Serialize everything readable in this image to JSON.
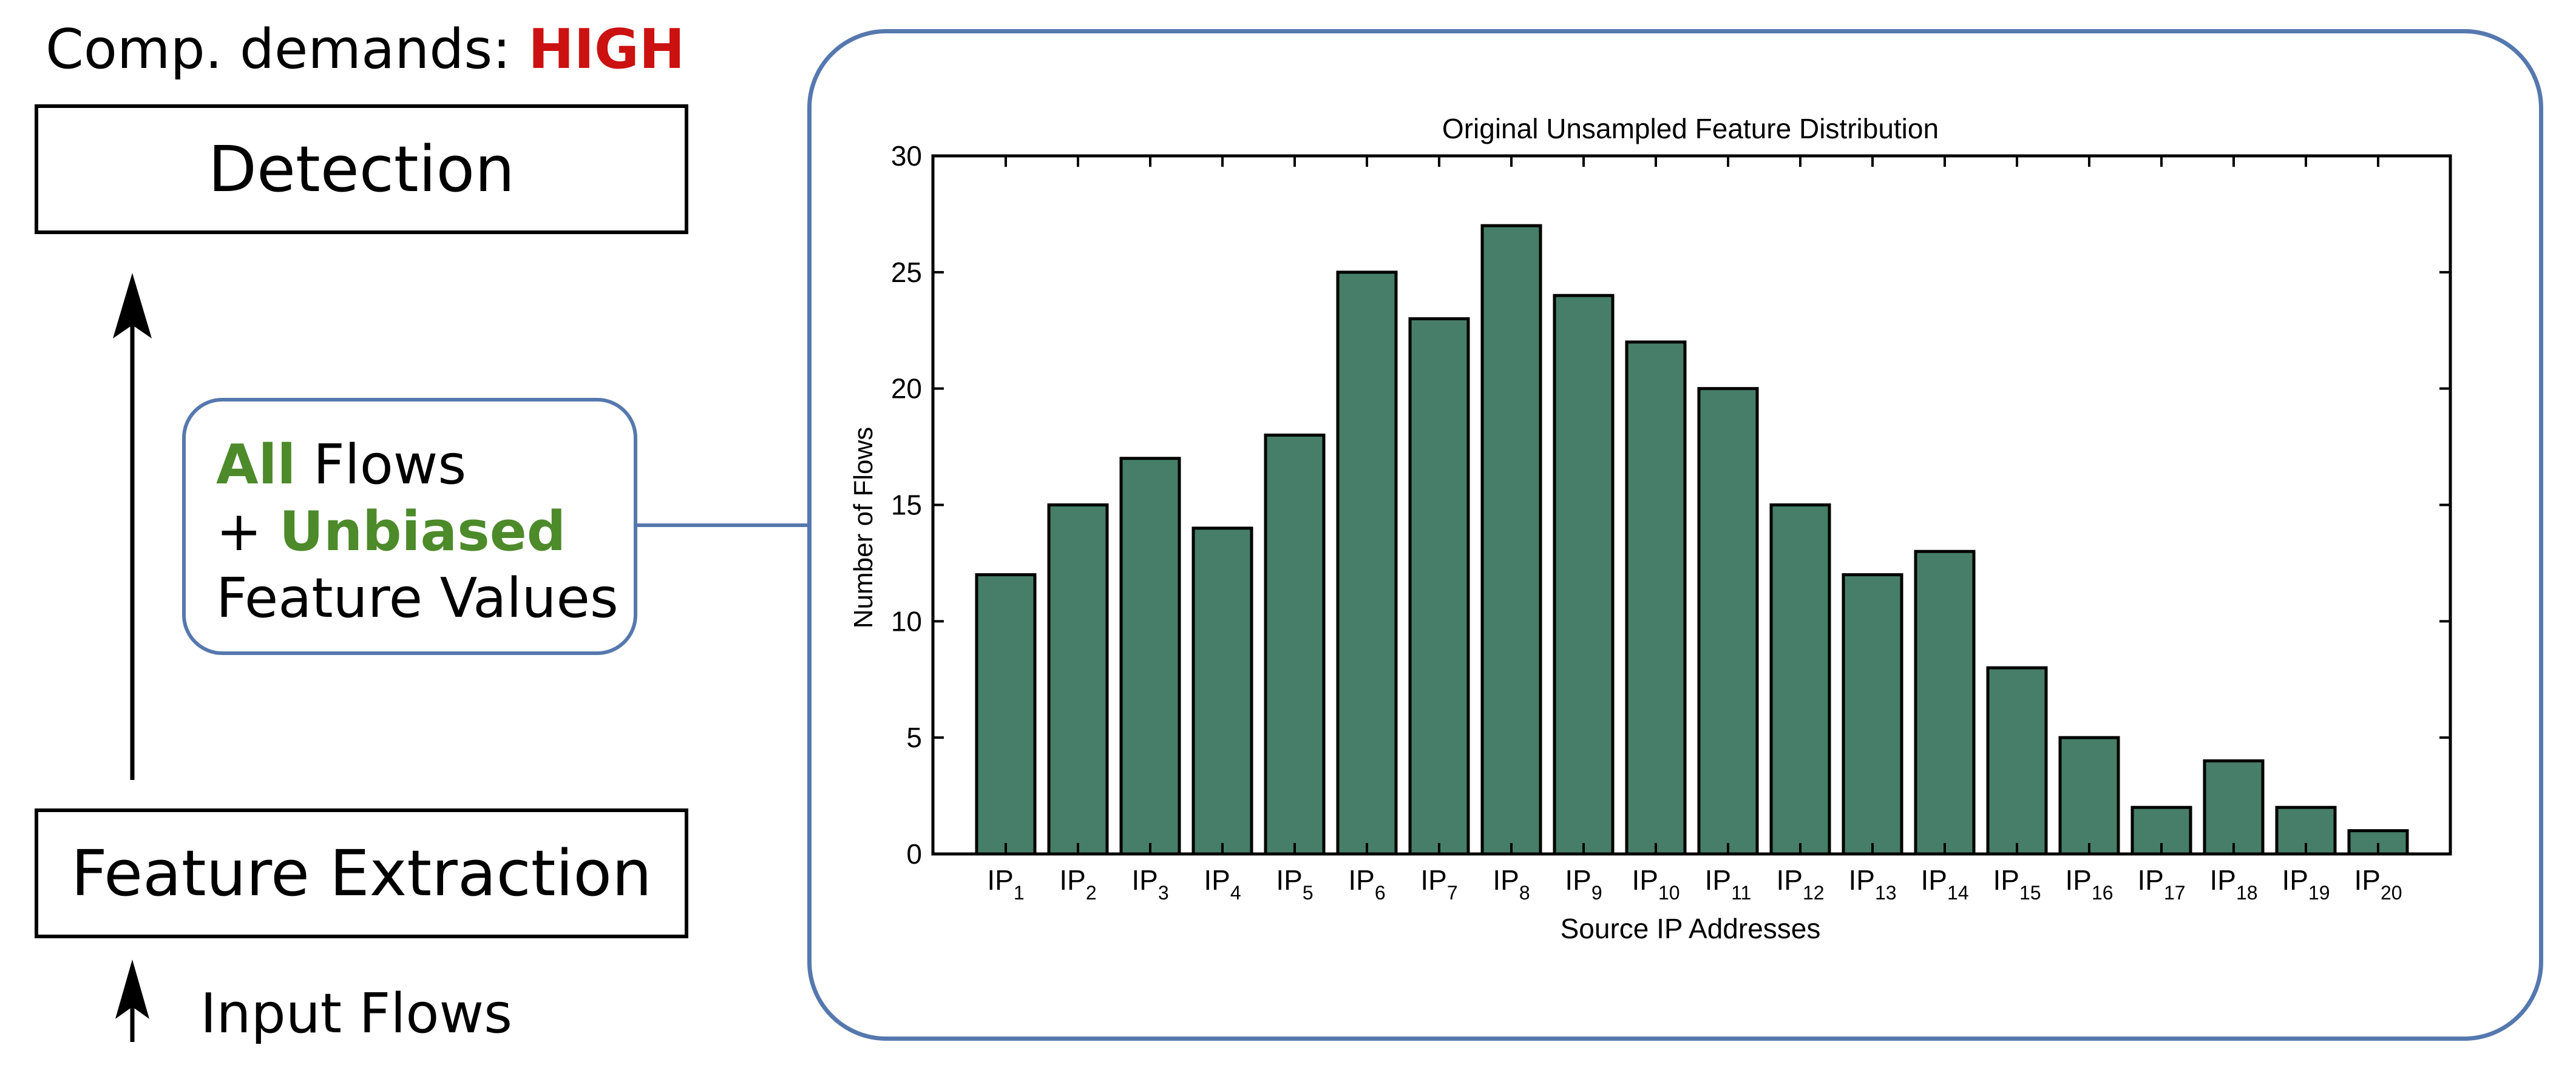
{
  "header": {
    "label": "Comp. demands:",
    "level": "HIGH",
    "level_color": "#cc1111"
  },
  "pipeline": {
    "detection_label": "Detection",
    "feature_extraction_label": "Feature Extraction",
    "input_label": "Input Flows"
  },
  "callout": {
    "line1_highlight": "All",
    "line1_rest": " Flows",
    "line2_prefix": "+ ",
    "line2_highlight": "Unbiased",
    "line3": "Feature Values",
    "highlight_color": "#4c8a2a",
    "border_color": "#5578ae"
  },
  "chart_data": {
    "type": "bar",
    "title": "Original Unsampled Feature Distribution",
    "xlabel": "Source IP Addresses",
    "ylabel": "Number of Flows",
    "categories": [
      {
        "base": "IP",
        "sub": "1"
      },
      {
        "base": "IP",
        "sub": "2"
      },
      {
        "base": "IP",
        "sub": "3"
      },
      {
        "base": "IP",
        "sub": "4"
      },
      {
        "base": "IP",
        "sub": "5"
      },
      {
        "base": "IP",
        "sub": "6"
      },
      {
        "base": "IP",
        "sub": "7"
      },
      {
        "base": "IP",
        "sub": "8"
      },
      {
        "base": "IP",
        "sub": "9"
      },
      {
        "base": "IP",
        "sub": "10"
      },
      {
        "base": "IP",
        "sub": "11"
      },
      {
        "base": "IP",
        "sub": "12"
      },
      {
        "base": "IP",
        "sub": "13"
      },
      {
        "base": "IP",
        "sub": "14"
      },
      {
        "base": "IP",
        "sub": "15"
      },
      {
        "base": "IP",
        "sub": "16"
      },
      {
        "base": "IP",
        "sub": "17"
      },
      {
        "base": "IP",
        "sub": "18"
      },
      {
        "base": "IP",
        "sub": "19"
      },
      {
        "base": "IP",
        "sub": "20"
      }
    ],
    "values": [
      12,
      15,
      17,
      14,
      18,
      25,
      23,
      27,
      24,
      22,
      20,
      15,
      12,
      13,
      8,
      5,
      2,
      4,
      2,
      1
    ],
    "ylim": [
      0,
      30
    ],
    "yticks": [
      0,
      5,
      10,
      15,
      20,
      25,
      30
    ],
    "bar_color": "#467e69",
    "grid": false
  }
}
